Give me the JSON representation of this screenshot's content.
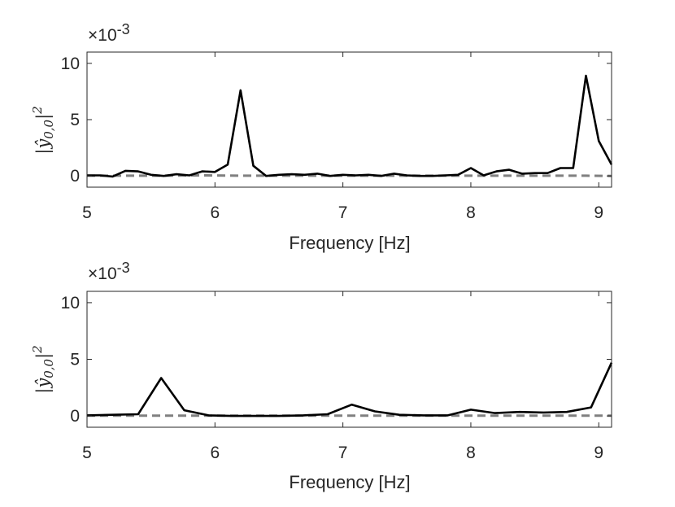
{
  "chart_data": [
    {
      "type": "line",
      "xlabel": "Frequency [Hz]",
      "ylabel": "|ŷ0,0|2",
      "ylabel_parts": {
        "bar": "|",
        "var": "ŷ",
        "sub": "0,0",
        "close": "|",
        "sup": "2"
      },
      "y_exponent": "×10",
      "y_exponent_power": "-3",
      "xlim": [
        5,
        9.1
      ],
      "ylim": [
        -1,
        11
      ],
      "xticks": [
        "5",
        "6",
        "7",
        "8",
        "9"
      ],
      "xtick_values": [
        5,
        6,
        7,
        8,
        9
      ],
      "yticks": [
        "0",
        "5",
        "10"
      ],
      "ytick_values": [
        0,
        5,
        10
      ],
      "grid": false,
      "series": [
        {
          "style": "solid",
          "color": "#000000",
          "x": [
            5.0,
            5.1,
            5.2,
            5.3,
            5.4,
            5.5,
            5.6,
            5.7,
            5.8,
            5.9,
            6.0,
            6.1,
            6.2,
            6.3,
            6.4,
            6.5,
            6.6,
            6.7,
            6.8,
            6.9,
            7.0,
            7.1,
            7.2,
            7.3,
            7.4,
            7.5,
            7.6,
            7.7,
            7.8,
            7.9,
            8.0,
            8.1,
            8.2,
            8.3,
            8.4,
            8.5,
            8.6,
            8.7,
            8.8,
            8.9,
            9.0,
            9.1
          ],
          "y": [
            0.05,
            0.05,
            -0.05,
            0.45,
            0.4,
            0.1,
            0.0,
            0.15,
            0.05,
            0.4,
            0.35,
            1.0,
            7.6,
            0.9,
            0.0,
            0.1,
            0.15,
            0.1,
            0.2,
            0.0,
            0.1,
            0.05,
            0.1,
            0.0,
            0.2,
            0.05,
            0.0,
            0.0,
            0.05,
            0.1,
            0.7,
            0.05,
            0.4,
            0.55,
            0.2,
            0.25,
            0.25,
            0.7,
            0.7,
            8.9,
            3.1,
            1.0
          ]
        },
        {
          "style": "dashed",
          "color": "#808080",
          "x": [
            5.0,
            5.3,
            5.6,
            5.9,
            6.2,
            6.5,
            6.8,
            7.1,
            7.4,
            7.7,
            8.0,
            8.3,
            8.6,
            8.9,
            9.1
          ],
          "y": [
            0.02,
            0.02,
            0.02,
            0.05,
            0.02,
            0.02,
            0.02,
            0.02,
            0.02,
            0.02,
            0.02,
            0.02,
            0.02,
            0.02,
            0.0
          ]
        }
      ]
    },
    {
      "type": "line",
      "xlabel": "Frequency [Hz]",
      "ylabel": "|ŷ0,0|2",
      "ylabel_parts": {
        "bar": "|",
        "var": "ŷ",
        "sub": "0,0",
        "close": "|",
        "sup": "2"
      },
      "y_exponent": "×10",
      "y_exponent_power": "-3",
      "xlim": [
        5,
        9.1
      ],
      "ylim": [
        -1,
        11
      ],
      "xticks": [
        "5",
        "6",
        "7",
        "8",
        "9"
      ],
      "xtick_values": [
        5,
        6,
        7,
        8,
        9
      ],
      "yticks": [
        "0",
        "5",
        "10"
      ],
      "ytick_values": [
        0,
        5,
        10
      ],
      "grid": false,
      "series": [
        {
          "style": "solid",
          "color": "#000000",
          "x": [
            5.0,
            5.2,
            5.4,
            5.58,
            5.76,
            5.95,
            6.13,
            6.32,
            6.5,
            6.69,
            6.88,
            7.07,
            7.25,
            7.44,
            7.63,
            7.82,
            8.0,
            8.19,
            8.38,
            8.57,
            8.75,
            8.94,
            9.1
          ],
          "y": [
            0.05,
            0.1,
            0.15,
            3.35,
            0.5,
            0.05,
            0.0,
            0.0,
            0.0,
            0.05,
            0.15,
            1.0,
            0.4,
            0.1,
            0.05,
            0.05,
            0.55,
            0.25,
            0.35,
            0.3,
            0.35,
            0.75,
            4.7
          ]
        },
        {
          "style": "dashed",
          "color": "#808080",
          "x": [
            5.0,
            5.5,
            6.0,
            6.5,
            7.0,
            7.5,
            8.0,
            8.5,
            9.0,
            9.1
          ],
          "y": [
            0.02,
            0.02,
            0.02,
            0.02,
            0.02,
            0.02,
            0.02,
            0.02,
            0.02,
            0.02
          ]
        }
      ]
    }
  ]
}
